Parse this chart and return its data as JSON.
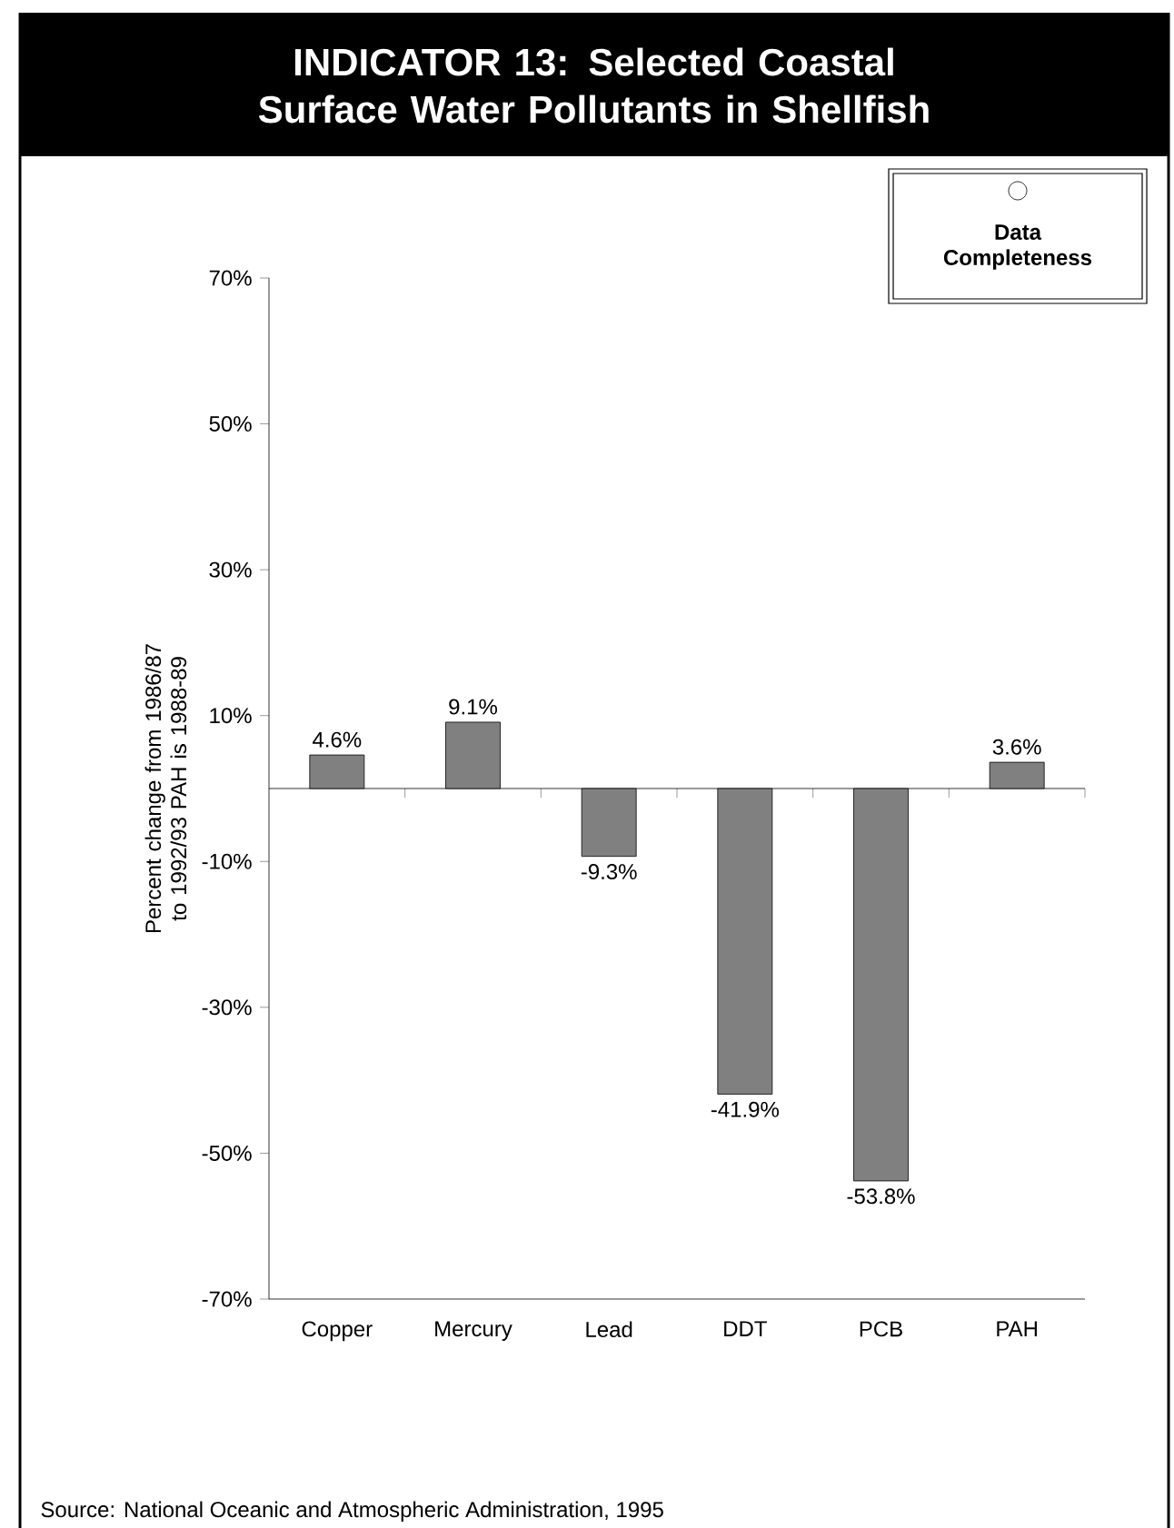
{
  "chart_data": {
    "type": "bar",
    "title": "INDICATOR 13: Selected Coastal Surface Water Pollutants in Shellfish",
    "ylabel": "Percent change from 1986/87 to 1992/93 PAH is 1988-89",
    "categories": [
      "Copper",
      "Mercury",
      "Lead",
      "DDT",
      "PCB",
      "PAH"
    ],
    "values": [
      4.6,
      9.1,
      -9.3,
      -41.9,
      -53.8,
      3.6
    ],
    "value_labels": [
      "4.6%",
      "9.1%",
      "-9.3%",
      "-41.9%",
      "-53.8%",
      "3.6%"
    ],
    "color": "#808080",
    "ylim": [
      -70,
      70
    ],
    "yticks": [
      {
        "value": 70,
        "label": "70%"
      },
      {
        "value": 50,
        "label": "50%"
      },
      {
        "value": 30,
        "label": "30%"
      },
      {
        "value": 10,
        "label": "10%"
      },
      {
        "value": -10,
        "label": "-10%"
      },
      {
        "value": -30,
        "label": "-30%"
      },
      {
        "value": -50,
        "label": "-50%"
      },
      {
        "value": -70,
        "label": "-70%"
      }
    ],
    "annotations": [
      "Data Completeness",
      "Source:  National Oceanic and Atmospheric Administration, 1995"
    ]
  }
}
